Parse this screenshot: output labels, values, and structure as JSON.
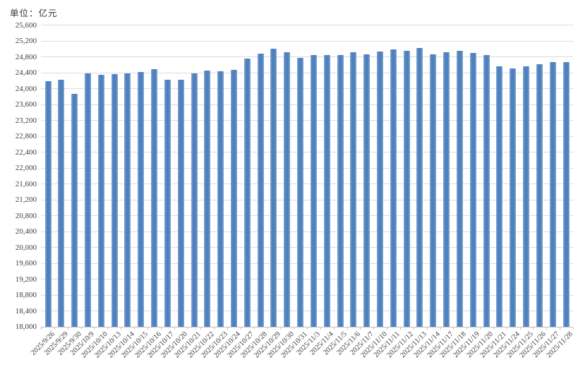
{
  "chart_data": {
    "type": "bar",
    "title": "",
    "unit_label": "单位：亿元",
    "xlabel": "",
    "ylabel": "",
    "legend": "none",
    "grid": true,
    "ylim": [
      18000,
      25600
    ],
    "ytick_step": 400,
    "ytick_labels": [
      "18,000",
      "18,400",
      "18,800",
      "19,200",
      "19,600",
      "20,000",
      "20,400",
      "20,800",
      "21,200",
      "21,600",
      "22,000",
      "22,400",
      "22,800",
      "23,200",
      "23,600",
      "24,000",
      "24,400",
      "24,800",
      "25,200",
      "25,600"
    ],
    "categories": [
      "2025/9/26",
      "2025/9/29",
      "2025/9/30",
      "2025/10/9",
      "2025/10/10",
      "2025/10/13",
      "2025/10/14",
      "2025/10/15",
      "2025/10/16",
      "2025/10/17",
      "2025/10/20",
      "2025/10/21",
      "2025/10/22",
      "2025/10/23",
      "2025/10/24",
      "2025/10/27",
      "2025/10/28",
      "2025/10/29",
      "2025/10/30",
      "2025/10/31",
      "2025/11/3",
      "2025/11/4",
      "2025/11/5",
      "2025/11/6",
      "2025/11/7",
      "2025/11/10",
      "2025/11/11",
      "2025/11/12",
      "2025/11/13",
      "2025/11/14",
      "2025/11/17",
      "2025/11/18",
      "2025/11/19",
      "2025/11/20",
      "2025/11/21",
      "2025/11/24",
      "2025/11/25",
      "2025/11/26",
      "2025/11/27",
      "2025/11/28"
    ],
    "values": [
      24180,
      24220,
      23870,
      24380,
      24340,
      24360,
      24380,
      24420,
      24490,
      24230,
      24220,
      24380,
      24450,
      24440,
      24480,
      24760,
      24880,
      25000,
      24920,
      24780,
      24850,
      24850,
      24850,
      24910,
      24860,
      24930,
      24990,
      24960,
      25020,
      24860,
      24920,
      24960,
      24900,
      24840,
      24560,
      24510,
      24560,
      24620,
      24660,
      24670
    ],
    "colors": {
      "bar": "#4E81BD",
      "bar_edge": "#85A8D2",
      "gridline": "#DCDCDC",
      "axis": "#BFBFBF",
      "label": "#3F3F3F"
    }
  }
}
